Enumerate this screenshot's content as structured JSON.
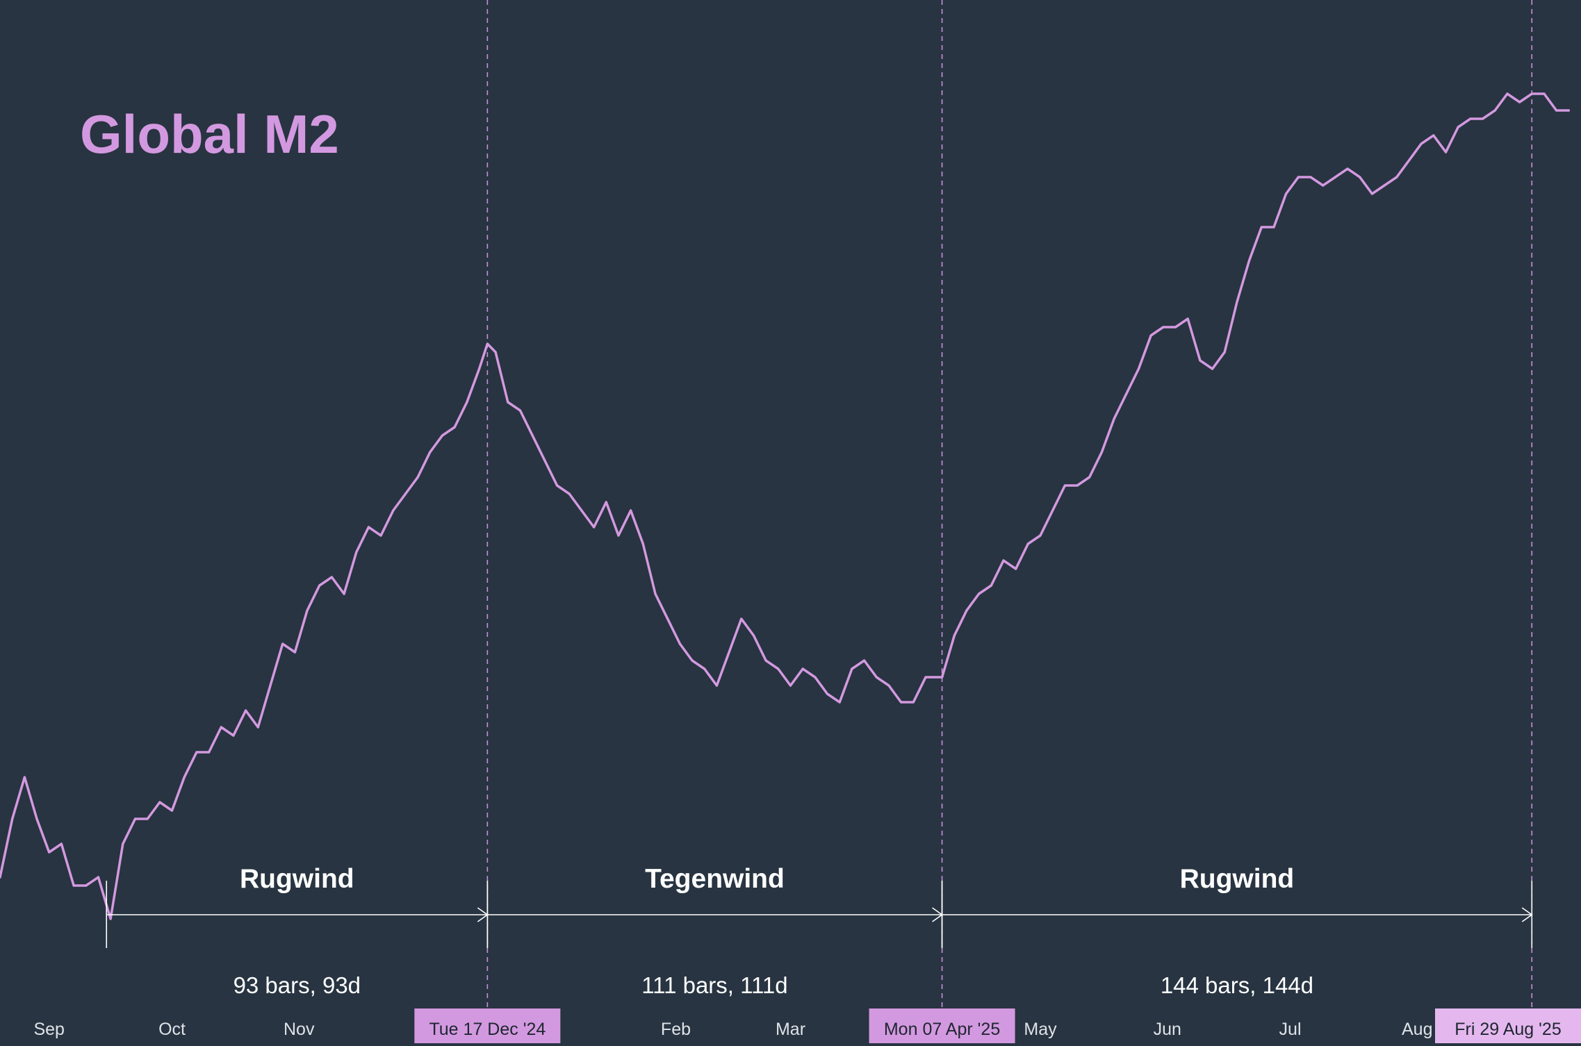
{
  "colors": {
    "background": "#283441",
    "series": "#d399e0",
    "text": "#ffffff",
    "marker": "#d399e0",
    "divider": "#c990d8"
  },
  "chart_data": {
    "type": "line",
    "title": "Global M2",
    "xlabel": "",
    "ylabel": "",
    "grid": false,
    "legend": "none",
    "x_range": [
      "2024-08-20",
      "2025-09-10"
    ],
    "y_range": [
      0,
      100
    ],
    "x_ticks": [
      {
        "date": "2024-09-01",
        "label": "Sep"
      },
      {
        "date": "2024-10-01",
        "label": "Oct"
      },
      {
        "date": "2024-11-01",
        "label": "Nov"
      },
      {
        "date": "2025-02-01",
        "label": "Feb"
      },
      {
        "date": "2025-03-01",
        "label": "Mar"
      },
      {
        "date": "2025-05-01",
        "label": "May"
      },
      {
        "date": "2025-06-01",
        "label": "Jun"
      },
      {
        "date": "2025-07-01",
        "label": "Jul"
      },
      {
        "date": "2025-08-01",
        "label": "Aug"
      }
    ],
    "x_ticks_partial": [
      {
        "date": "2024-12-01",
        "label": "D"
      },
      {
        "date": "2025-01-01",
        "label": "5"
      }
    ],
    "date_markers": [
      {
        "date": "2024-12-17",
        "label": "Tue 17 Dec '24"
      },
      {
        "date": "2025-04-07",
        "label": "Mon 07 Apr '25"
      },
      {
        "date": "2025-08-29",
        "label": "Fri 29 Aug '25"
      }
    ],
    "segments": [
      {
        "start": "2024-09-15",
        "end": "2024-12-17",
        "label": "Rugwind",
        "count": "93 bars, 93d"
      },
      {
        "start": "2024-12-17",
        "end": "2025-04-07",
        "label": "Tegenwind",
        "count": "111 bars, 111d"
      },
      {
        "start": "2025-04-07",
        "end": "2025-08-29",
        "label": "Rugwind",
        "count": "144 bars, 144d"
      }
    ],
    "series": [
      {
        "x": [
          "2024-08-20",
          "2024-08-23",
          "2024-08-26",
          "2024-08-29",
          "2024-09-01",
          "2024-09-04",
          "2024-09-07",
          "2024-09-10",
          "2024-09-13",
          "2024-09-16",
          "2024-09-19",
          "2024-09-22",
          "2024-09-25",
          "2024-09-28",
          "2024-10-01",
          "2024-10-04",
          "2024-10-07",
          "2024-10-10",
          "2024-10-13",
          "2024-10-16",
          "2024-10-19",
          "2024-10-22",
          "2024-10-25",
          "2024-10-28",
          "2024-10-31",
          "2024-11-03",
          "2024-11-06",
          "2024-11-09",
          "2024-11-12",
          "2024-11-15",
          "2024-11-18",
          "2024-11-21",
          "2024-11-24",
          "2024-11-27",
          "2024-11-30",
          "2024-12-03",
          "2024-12-06",
          "2024-12-09",
          "2024-12-12",
          "2024-12-15",
          "2024-12-17",
          "2024-12-19",
          "2024-12-22",
          "2024-12-25",
          "2024-12-28",
          "2024-12-31",
          "2025-01-03",
          "2025-01-06",
          "2025-01-09",
          "2025-01-12",
          "2025-01-15",
          "2025-01-18",
          "2025-01-21",
          "2025-01-24",
          "2025-01-27",
          "2025-01-30",
          "2025-02-02",
          "2025-02-05",
          "2025-02-08",
          "2025-02-11",
          "2025-02-14",
          "2025-02-17",
          "2025-02-20",
          "2025-02-23",
          "2025-02-26",
          "2025-03-01",
          "2025-03-04",
          "2025-03-07",
          "2025-03-10",
          "2025-03-13",
          "2025-03-16",
          "2025-03-19",
          "2025-03-22",
          "2025-03-25",
          "2025-03-28",
          "2025-03-31",
          "2025-04-03",
          "2025-04-07",
          "2025-04-10",
          "2025-04-13",
          "2025-04-16",
          "2025-04-19",
          "2025-04-22",
          "2025-04-25",
          "2025-04-28",
          "2025-05-01",
          "2025-05-04",
          "2025-05-07",
          "2025-05-10",
          "2025-05-13",
          "2025-05-16",
          "2025-05-19",
          "2025-05-22",
          "2025-05-25",
          "2025-05-28",
          "2025-05-31",
          "2025-06-03",
          "2025-06-06",
          "2025-06-09",
          "2025-06-12",
          "2025-06-15",
          "2025-06-18",
          "2025-06-21",
          "2025-06-24",
          "2025-06-27",
          "2025-06-30",
          "2025-07-03",
          "2025-07-06",
          "2025-07-09",
          "2025-07-12",
          "2025-07-15",
          "2025-07-18",
          "2025-07-21",
          "2025-07-24",
          "2025-07-27",
          "2025-07-30",
          "2025-08-02",
          "2025-08-05",
          "2025-08-08",
          "2025-08-11",
          "2025-08-14",
          "2025-08-17",
          "2025-08-20",
          "2025-08-23",
          "2025-08-26",
          "2025-08-29",
          "2025-09-01",
          "2025-09-04",
          "2025-09-07"
        ],
        "y": [
          6,
          13,
          18,
          13,
          9,
          10,
          5,
          5,
          6,
          1,
          10,
          13,
          13,
          15,
          14,
          18,
          21,
          21,
          24,
          23,
          26,
          24,
          29,
          34,
          33,
          38,
          41,
          42,
          40,
          45,
          48,
          47,
          50,
          52,
          54,
          57,
          59,
          60,
          63,
          67,
          70,
          69,
          63,
          62,
          59,
          56,
          53,
          52,
          50,
          48,
          51,
          47,
          50,
          46,
          40,
          37,
          34,
          32,
          31,
          29,
          33,
          37,
          35,
          32,
          31,
          29,
          31,
          30,
          28,
          27,
          31,
          32,
          30,
          29,
          27,
          27,
          30,
          30,
          35,
          38,
          40,
          41,
          44,
          43,
          46,
          47,
          50,
          53,
          53,
          54,
          57,
          61,
          64,
          67,
          71,
          72,
          72,
          73,
          68,
          67,
          69,
          75,
          80,
          84,
          84,
          88,
          90,
          90,
          89,
          90,
          91,
          90,
          88,
          89,
          90,
          92,
          94,
          95,
          93,
          96,
          97,
          97,
          98,
          100,
          99,
          100,
          100,
          98,
          98
        ]
      }
    ]
  }
}
